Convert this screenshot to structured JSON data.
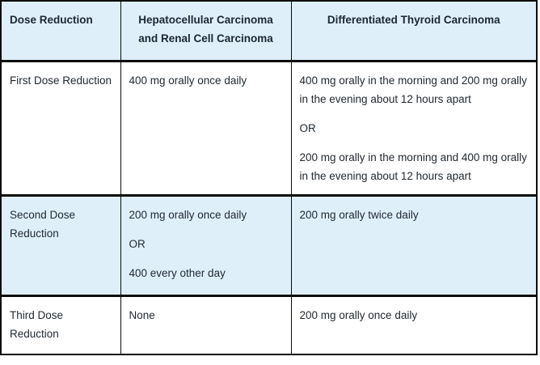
{
  "colors": {
    "header_bg": "#deeffa",
    "stripe_bg": "#deeffa",
    "border": "#0d0d0d",
    "text": "#222a31"
  },
  "table": {
    "headers": [
      "Dose Reduction",
      "Hepatocellular Carcinoma and Renal Cell Carcinoma",
      "Differentiated Thyroid Carcinoma"
    ],
    "rows": [
      {
        "label": "First Dose Reduction",
        "hcc_rcc": [
          "400 mg orally once daily"
        ],
        "dtc": [
          "400 mg orally in the morning and 200 mg orally in the evening about 12 hours apart",
          "OR",
          "200 mg orally in the morning and 400 mg orally in the evening about 12 hours apart"
        ]
      },
      {
        "label": "Second Dose Reduction",
        "hcc_rcc": [
          "200 mg orally once daily",
          "OR",
          "400 every other day"
        ],
        "dtc": [
          "200 mg orally twice daily"
        ]
      },
      {
        "label": "Third Dose Reduction",
        "hcc_rcc": [
          "None"
        ],
        "dtc": [
          "200 mg orally once daily"
        ]
      }
    ]
  }
}
